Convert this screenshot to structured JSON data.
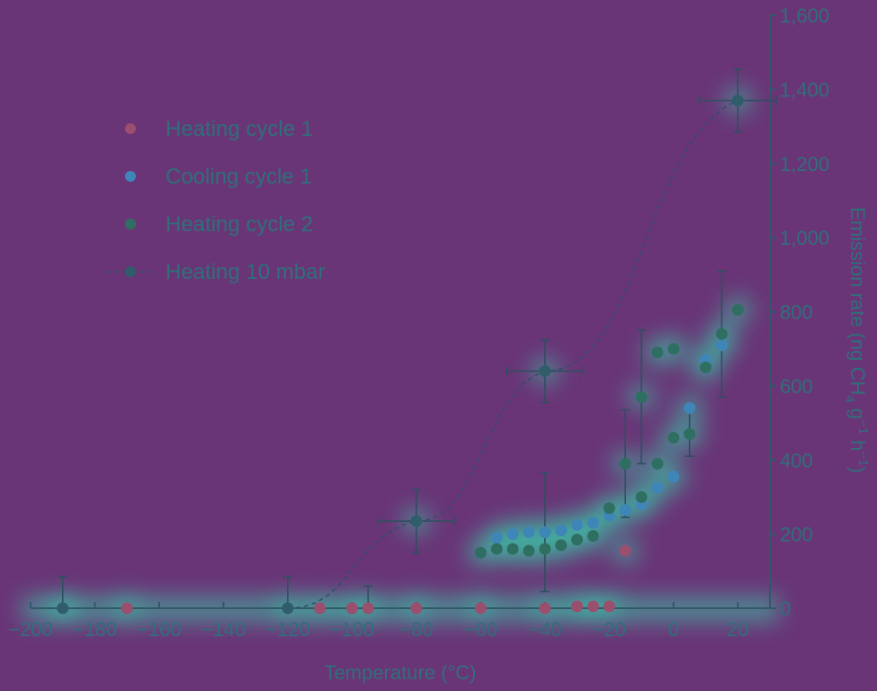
{
  "chart_data": {
    "type": "scatter",
    "title": "",
    "xlabel": "Temperature  (°C)",
    "ylabel": "Emission rate (ng CH",
    "ylabel_sub": "4",
    "ylabel_rest": " g",
    "ylabel_sup1": "−1",
    "ylabel_mid": " h",
    "ylabel_sup2": "−1",
    "ylabel_end": ")",
    "xlim": [
      -200,
      30
    ],
    "ylim": [
      0,
      1600
    ],
    "xticks": [
      -200,
      -180,
      -160,
      -140,
      -120,
      -100,
      -80,
      -60,
      -40,
      -20,
      0,
      20
    ],
    "xtick_labels": [
      "−200",
      "−180",
      "−160",
      "−140",
      "−120",
      "−100",
      "−80",
      "−60",
      "−40",
      "−20",
      "0",
      "20"
    ],
    "yticks": [
      0,
      200,
      400,
      600,
      800,
      1000,
      1200,
      1400,
      1600
    ],
    "ytick_labels": [
      "0",
      "200",
      "400",
      "600",
      "800",
      "1,000",
      "1,200",
      "1,400",
      "1,600"
    ],
    "legend_position": "top-left",
    "series": [
      {
        "name": "Heating cycle 1",
        "color": "#9b4f6e",
        "points": [
          [
            -190,
            0
          ],
          [
            -170,
            0
          ],
          [
            -110,
            0
          ],
          [
            -100,
            0
          ],
          [
            -95,
            0
          ],
          [
            -80,
            0
          ],
          [
            -60,
            0
          ],
          [
            -40,
            0
          ],
          [
            -30,
            5
          ],
          [
            -25,
            5
          ],
          [
            -20,
            5
          ],
          [
            -15,
            155
          ]
        ]
      },
      {
        "name": "Cooling cycle 1",
        "color": "#3f86b8",
        "points": [
          [
            -55,
            190
          ],
          [
            -50,
            200
          ],
          [
            -45,
            205
          ],
          [
            -40,
            205
          ],
          [
            -35,
            210
          ],
          [
            -30,
            225
          ],
          [
            -25,
            230
          ],
          [
            -20,
            250
          ],
          [
            -15,
            265
          ],
          [
            -10,
            280
          ],
          [
            -5,
            325
          ],
          [
            0,
            355
          ],
          [
            5,
            540
          ],
          [
            10,
            670
          ],
          [
            15,
            710
          ]
        ]
      },
      {
        "name": "Heating cycle 2",
        "color": "#2f6f62",
        "points": [
          [
            -60,
            150
          ],
          [
            -55,
            160
          ],
          [
            -50,
            160
          ],
          [
            -45,
            155
          ],
          [
            -40,
            160
          ],
          [
            -35,
            170
          ],
          [
            -30,
            185
          ],
          [
            -25,
            195
          ],
          [
            -20,
            270
          ],
          [
            -15,
            390
          ],
          [
            -10,
            570
          ],
          [
            -10,
            300
          ],
          [
            -5,
            390
          ],
          [
            -5,
            690
          ],
          [
            0,
            700
          ],
          [
            0,
            460
          ],
          [
            5,
            470
          ],
          [
            10,
            650
          ],
          [
            15,
            740
          ],
          [
            20,
            805
          ]
        ]
      },
      {
        "name": "Heating 10 mbar",
        "color": "#2f5e6a",
        "line": true,
        "points": [
          [
            -190,
            0
          ],
          [
            -120,
            0
          ],
          [
            -80,
            235
          ],
          [
            -40,
            640
          ],
          [
            20,
            1370
          ]
        ]
      }
    ]
  }
}
